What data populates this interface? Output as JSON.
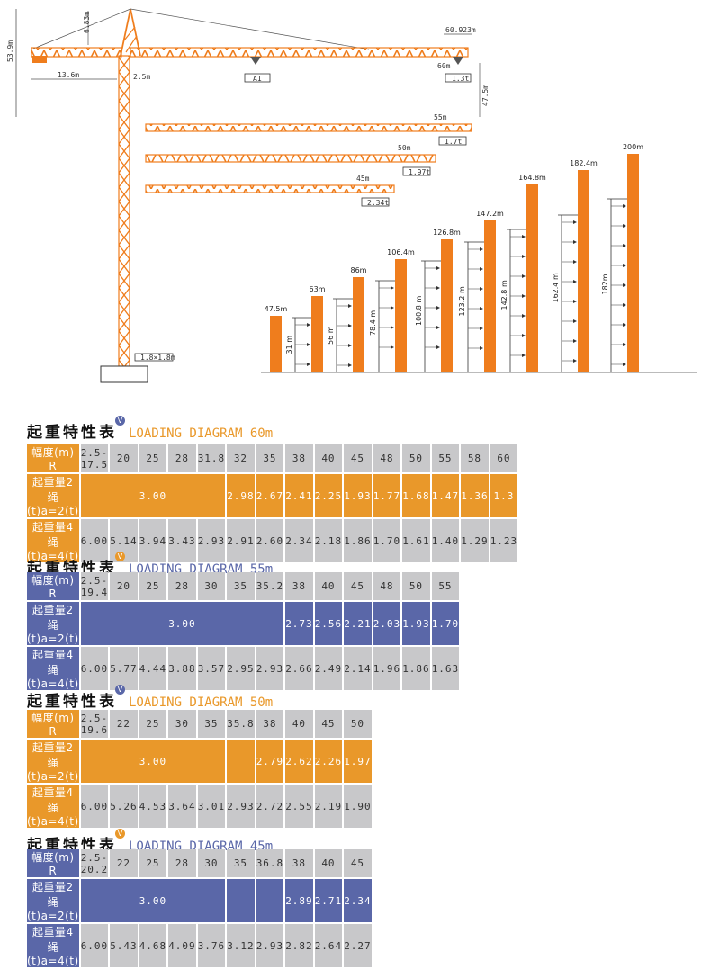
{
  "diagram": {
    "crane": {
      "height_label": "53.9m",
      "top_label": "6.83m",
      "counter_jib_label": "13.6m",
      "offset_label": "2.5m",
      "jib_length_label": "60.923m",
      "reach_label": "60m",
      "hook_height_label": "47.5m",
      "weight_left_label": "A1",
      "weight_right_label": "1.3t",
      "base_label": "1.8×1.8m"
    },
    "jibs": [
      {
        "length": "55m",
        "load": "1.7t"
      },
      {
        "length": "50m",
        "load": "1.97t"
      },
      {
        "length": "45m",
        "load": "2.34t"
      }
    ],
    "towers": [
      {
        "top": "47.5m",
        "inner": ""
      },
      {
        "top": "63m",
        "inner": "31 m"
      },
      {
        "top": "86m",
        "inner": "56 m"
      },
      {
        "top": "106.4m",
        "inner": "78.4 m"
      },
      {
        "top": "126.8m",
        "inner": "100.8 m"
      },
      {
        "top": "147.2m",
        "inner": "123.2 m"
      },
      {
        "top": "164.8m",
        "inner": "142.8 m"
      },
      {
        "top": "182.4m",
        "inner": "162.4 m"
      },
      {
        "top": "200m",
        "inner": "182m"
      }
    ]
  },
  "tables": [
    {
      "title_cn": "起重特性表",
      "title_en": "LOADING DIAGRAM 60m",
      "row1_label": "幅度(m) R",
      "row2_label": "起重量2绳(t)a=2(t)",
      "row3_label": "起重量4绳(t)a=4(t)",
      "radius": [
        "2.5-17.5",
        "20",
        "25",
        "28",
        "31.8",
        "32",
        "35",
        "38",
        "40",
        "45",
        "48",
        "50",
        "55",
        "58",
        "60"
      ],
      "two_fall": {
        "merged": "3.00",
        "span": 5,
        "values": [
          "2.98",
          "2.67",
          "2.41",
          "2.25",
          "1.93",
          "1.77",
          "1.68",
          "1.47",
          "1.36",
          "1.3"
        ]
      },
      "four_fall": [
        "6.00",
        "5.14",
        "3.94",
        "3.43",
        "2.93",
        "2.91",
        "2.60",
        "2.34",
        "2.18",
        "1.86",
        "1.70",
        "1.61",
        "1.40",
        "1.29",
        "1.23"
      ]
    },
    {
      "title_cn": "起重特性表",
      "title_en": "LOADING DIAGRAM 55m",
      "row1_label": "幅度(m) R",
      "row2_label": "起重量2绳(t)a=2(t)",
      "row3_label": "起重量4绳(t)a=4(t)",
      "radius": [
        "2.5-19.4",
        "20",
        "25",
        "28",
        "30",
        "35",
        "35.2",
        "38",
        "40",
        "45",
        "48",
        "50",
        "55"
      ],
      "two_fall": {
        "merged": "3.00",
        "span": 7,
        "values": [
          "2.73",
          "2.56",
          "2.21",
          "2.03",
          "1.93",
          "1.70"
        ]
      },
      "four_fall": [
        "6.00",
        "5.77",
        "4.44",
        "3.88",
        "3.57",
        "2.95",
        "2.93",
        "2.66",
        "2.49",
        "2.14",
        "1.96",
        "1.86",
        "1.63"
      ]
    },
    {
      "title_cn": "起重特性表",
      "title_en": "LOADING DIAGRAM 50m",
      "row1_label": "幅度(m) R",
      "row2_label": "起重量2绳(t)a=2(t)",
      "row3_label": "起重量4绳(t)a=4(t)",
      "radius": [
        "2.5-19.6",
        "22",
        "25",
        "30",
        "35",
        "35.8",
        "38",
        "40",
        "45",
        "50"
      ],
      "two_fall": {
        "merged": "3.00",
        "span": 5,
        "blank": 1,
        "values": [
          "2.79",
          "2.62",
          "2.26",
          "1.97"
        ]
      },
      "four_fall": [
        "6.00",
        "5.26",
        "4.53",
        "3.64",
        "3.01",
        "2.93",
        "2.72",
        "2.55",
        "2.19",
        "1.90"
      ]
    },
    {
      "title_cn": "起重特性表",
      "title_en": "LOADING DIAGRAM 45m",
      "row1_label": "幅度(m) R",
      "row2_label": "起重量2绳(t)a=2(t)",
      "row3_label": "起重量4绳(t)a=4(t)",
      "radius": [
        "2.5-20.2",
        "22",
        "25",
        "28",
        "30",
        "35",
        "36.8",
        "38",
        "40",
        "45"
      ],
      "two_fall": {
        "merged": "3.00",
        "span": 5,
        "blank": 2,
        "values": [
          "2.89",
          "2.71",
          "2.34"
        ]
      },
      "four_fall": [
        "6.00",
        "5.43",
        "4.68",
        "4.09",
        "3.76",
        "3.12",
        "2.93",
        "2.82",
        "2.64",
        "2.27"
      ]
    }
  ],
  "colors": {
    "orange": "#e9982a",
    "blue": "#5a67a8",
    "gray": "#c8c8ca",
    "tower": "#ef7d1d"
  }
}
